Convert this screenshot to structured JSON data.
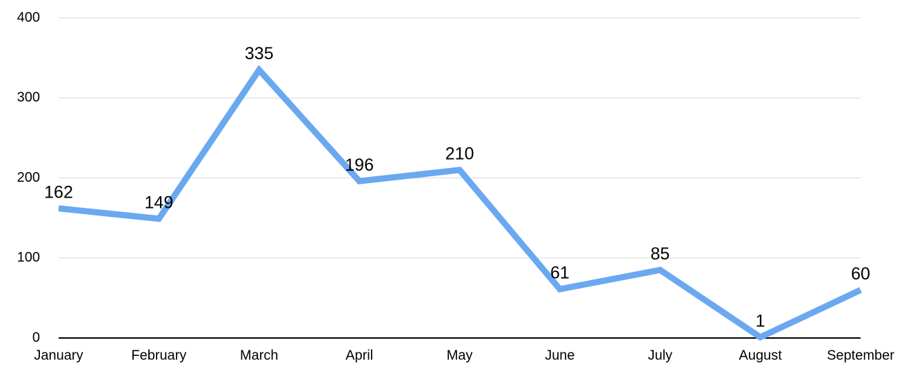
{
  "chart_data": {
    "type": "line",
    "categories": [
      "January",
      "February",
      "March",
      "April",
      "May",
      "June",
      "July",
      "August",
      "September"
    ],
    "series": [
      {
        "color": "#6aa8f0",
        "values": [
          162,
          149,
          335,
          196,
          210,
          61,
          85,
          1,
          60
        ]
      }
    ],
    "ylim": [
      0,
      400
    ],
    "yticks": [
      0,
      100,
      200,
      300,
      400
    ],
    "grid": true
  }
}
